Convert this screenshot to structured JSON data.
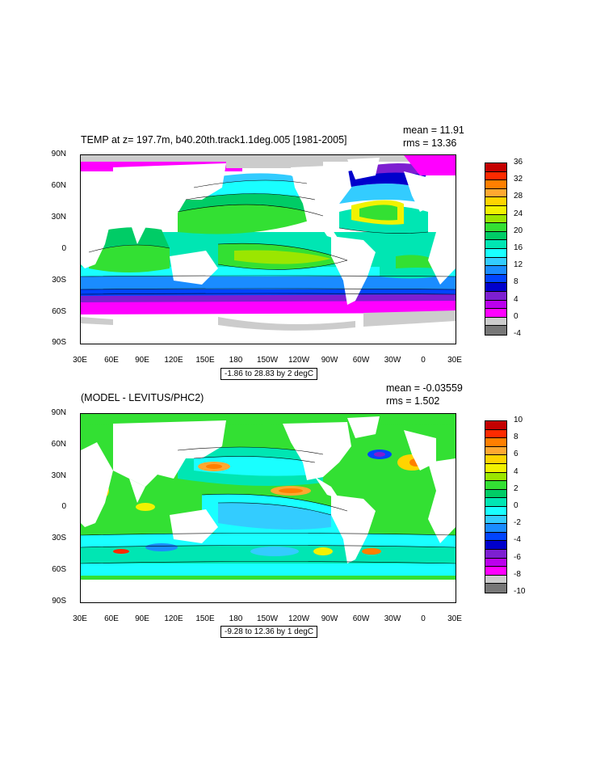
{
  "top": {
    "title": "TEMP at z= 197.7m, b40.20th.track1.1deg.005 [1981-2005]",
    "mean": "mean = 11.91",
    "rms": "rms = 13.36",
    "range": "-1.86 to 28.83 by 2 degC",
    "colorbar": {
      "labels": [
        "36",
        "32",
        "28",
        "24",
        "20",
        "16",
        "12",
        "8",
        "4",
        "0",
        "-4"
      ],
      "colors": [
        "#c40000",
        "#ff2a00",
        "#ff7f00",
        "#ffa830",
        "#ffd400",
        "#f2f200",
        "#9be600",
        "#33e033",
        "#00cc66",
        "#00e6b3",
        "#19ffff",
        "#33ccff",
        "#1a8cff",
        "#0044ff",
        "#0000cc",
        "#7d1fd1",
        "#bb00ee",
        "#ff00ff",
        "#cccccc",
        "#777777"
      ]
    }
  },
  "bottom": {
    "title": "(MODEL - LEVITUS/PHC2)",
    "mean": "mean = -0.03559",
    "rms": "rms = 1.502",
    "range": "-9.28 to 12.36 by 1 degC",
    "colorbar": {
      "labels": [
        "10",
        "8",
        "6",
        "4",
        "2",
        "0",
        "-2",
        "-4",
        "-6",
        "-8",
        "-10"
      ],
      "colors": [
        "#c40000",
        "#ff2a00",
        "#ff7f00",
        "#ffa830",
        "#ffd400",
        "#f2f200",
        "#9be600",
        "#33e033",
        "#00cc66",
        "#00e6b3",
        "#19ffff",
        "#33ccff",
        "#1a8cff",
        "#0044ff",
        "#0000cc",
        "#7d1fd1",
        "#bb00ee",
        "#ff00ff",
        "#cccccc",
        "#777777"
      ]
    }
  },
  "axes": {
    "lat_labels": [
      "90N",
      "60N",
      "30N",
      "0",
      "30S",
      "60S",
      "90S"
    ],
    "lon_labels": [
      "30E",
      "60E",
      "90E",
      "120E",
      "150E",
      "180",
      "150W",
      "120W",
      "90W",
      "60W",
      "30W",
      "0",
      "30E"
    ]
  }
}
